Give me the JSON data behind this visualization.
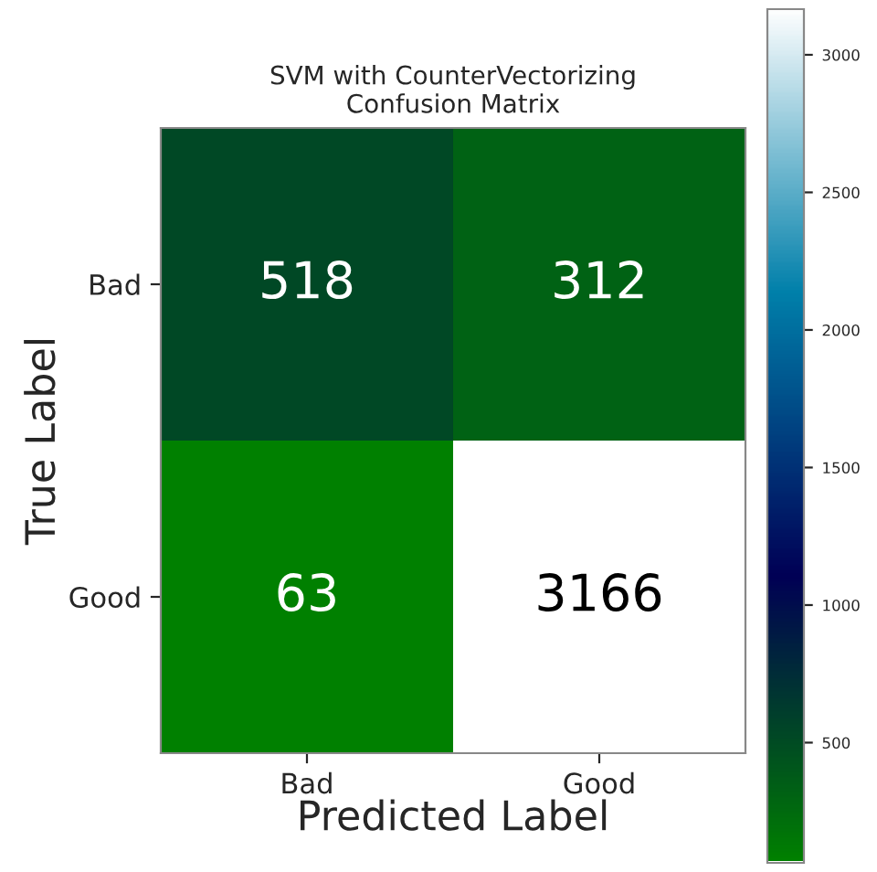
{
  "chart_data": {
    "type": "heatmap",
    "title": "SVM with CounterVectorizing\nConfusion Matrix",
    "xlabel": "Predicted Label",
    "ylabel": "True Label",
    "categories": [
      "Bad",
      "Good"
    ],
    "y_categories": [
      "Bad",
      "Good"
    ],
    "cells": [
      [
        518,
        312
      ],
      [
        63,
        3166
      ]
    ],
    "clim": [
      63,
      3166
    ],
    "cticks": [
      500,
      1000,
      1500,
      2000,
      2500,
      3000
    ],
    "data_labels": true
  }
}
